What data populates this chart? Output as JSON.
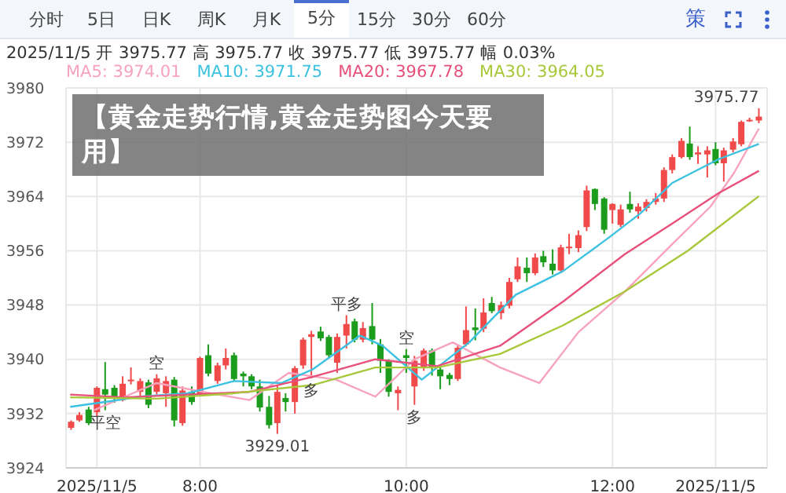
{
  "chart_data": {
    "type": "candlestick",
    "title": "【黄金走势行情,黄金走势图今天要用】",
    "subtitle": "2025/11/5 开 3975.77 高 3975.77 收 3975.77 低 3975.77 幅 0.03%",
    "annotations": [
      "分时",
      "5日",
      "日K",
      "周K",
      "月K",
      "5分",
      "15分",
      "30分",
      "60分",
      "策",
      {
        "text": "平空",
        "x": 7.08,
        "y": 3932.5
      },
      {
        "text": "空",
        "x": 7.58,
        "y": 3937.8
      },
      {
        "text": "多",
        "x": 9.08,
        "y": 3937.2
      },
      {
        "text": "平多",
        "x": 9.42,
        "y": 3946.5
      },
      {
        "text": "空",
        "x": 10,
        "y": 3941.5
      },
      {
        "text": "多",
        "x": 10.08,
        "y": 3933.3
      },
      {
        "text": "3929.01",
        "x": 8.75,
        "y": 3929.01
      },
      {
        "text": "3975.77",
        "x": 13.42,
        "y": 3977
      }
    ],
    "x": [
      6.75,
      6.83,
      6.92,
      7,
      7.08,
      7.17,
      7.25,
      7.33,
      7.42,
      7.5,
      7.58,
      7.67,
      7.75,
      7.83,
      7.92,
      8,
      8.08,
      8.17,
      8.25,
      8.33,
      8.42,
      8.5,
      8.58,
      8.67,
      8.75,
      8.83,
      8.92,
      9,
      9.08,
      9.17,
      9.25,
      9.33,
      9.42,
      9.5,
      9.58,
      9.67,
      9.75,
      9.83,
      9.92,
      10,
      10.08,
      10.17,
      10.25,
      10.33,
      10.42,
      10.5,
      10.58,
      10.67,
      10.75,
      10.83,
      10.92,
      11,
      11.08,
      11.17,
      11.25,
      11.33,
      11.42,
      11.5,
      11.58,
      11.67,
      11.75,
      11.83,
      11.92,
      12,
      12.08,
      12.17,
      12.25,
      12.33,
      12.42,
      12.5,
      12.58,
      12.67,
      12.75,
      12.83,
      12.92,
      13,
      13.08,
      13.17,
      13.25,
      13.33,
      13.42
    ],
    "ohlc": [
      [
        3929.9,
        3931.0,
        3929.6,
        3930.8
      ],
      [
        3931.0,
        3932.2,
        3930.8,
        3931.8
      ],
      [
        3932.6,
        3933.0,
        3930.3,
        3930.6
      ],
      [
        3932.2,
        3936.0,
        3931.5,
        3935.8
      ],
      [
        3935.6,
        3939.6,
        3932.5,
        3934.8
      ],
      [
        3935.8,
        3936.2,
        3933.6,
        3934.3
      ],
      [
        3934.0,
        3937.5,
        3933.8,
        3936.4
      ],
      [
        3936.8,
        3938.8,
        3936.3,
        3937.0
      ],
      [
        3935.2,
        3937.2,
        3934.6,
        3936.8
      ],
      [
        3936.6,
        3937.0,
        3932.8,
        3933.3
      ],
      [
        3935.2,
        3937.8,
        3934.8,
        3937.2
      ],
      [
        3935.0,
        3937.5,
        3933.0,
        3936.8
      ],
      [
        3937.0,
        3937.4,
        3930.1,
        3931.0
      ],
      [
        3930.6,
        3936.0,
        3930.2,
        3935.4
      ],
      [
        3935.2,
        3936.0,
        3933.3,
        3933.7
      ],
      [
        3934.9,
        3940.4,
        3934.6,
        3940.2
      ],
      [
        3940.6,
        3942.2,
        3937.5,
        3937.9
      ],
      [
        3936.8,
        3939.5,
        3936.4,
        3939.1
      ],
      [
        3939.1,
        3941.6,
        3938.5,
        3940.2
      ],
      [
        3940.6,
        3941.0,
        3936.8,
        3937.1
      ],
      [
        3937.9,
        3938.2,
        3936.0,
        3937.5
      ],
      [
        3937.5,
        3937.8,
        3935.6,
        3936.0
      ],
      [
        3936.0,
        3937.0,
        3932.3,
        3932.9
      ],
      [
        3933.0,
        3934.6,
        3929.8,
        3930.3
      ],
      [
        3930.6,
        3936.2,
        3929.01,
        3935.2
      ],
      [
        3934.3,
        3935.0,
        3932.3,
        3933.7
      ],
      [
        3933.7,
        3939.0,
        3932.0,
        3938.7
      ],
      [
        3939.1,
        3943.2,
        3938.6,
        3942.9
      ],
      [
        3943.3,
        3944.2,
        3937.2,
        3943.7
      ],
      [
        3944.1,
        3944.8,
        3942.7,
        3943.1
      ],
      [
        3943.3,
        3943.6,
        3940.2,
        3940.6
      ],
      [
        3939.5,
        3943.8,
        3938.0,
        3943.3
      ],
      [
        3943.5,
        3946.5,
        3941.6,
        3945.2
      ],
      [
        3945.6,
        3946.0,
        3942.5,
        3942.9
      ],
      [
        3942.9,
        3945.5,
        3942.5,
        3944.6
      ],
      [
        3944.9,
        3948.3,
        3942.2,
        3942.9
      ],
      [
        3942.2,
        3943.0,
        3938.0,
        3939.8
      ],
      [
        3939.8,
        3940.0,
        3934.5,
        3935.2
      ],
      [
        3935.0,
        3936.0,
        3932.5,
        3935.5
      ],
      [
        3940.6,
        3941.5,
        3938.0,
        3940.2
      ],
      [
        3936.0,
        3940.5,
        3933.3,
        3939.8
      ],
      [
        3938.7,
        3941.6,
        3938.3,
        3941.3
      ],
      [
        3941.3,
        3941.6,
        3937.6,
        3938.7
      ],
      [
        3938.5,
        3939.0,
        3935.6,
        3937.5
      ],
      [
        3937.7,
        3938.0,
        3936.2,
        3937.1
      ],
      [
        3937.1,
        3942.2,
        3936.8,
        3941.7
      ],
      [
        3942.2,
        3947.8,
        3941.9,
        3944.3
      ],
      [
        3944.7,
        3947.5,
        3942.8,
        3944.3
      ],
      [
        3944.5,
        3949.0,
        3944.0,
        3946.9
      ],
      [
        3948.3,
        3949.2,
        3946.8,
        3947.1
      ],
      [
        3946.8,
        3948.5,
        3945.9,
        3948.0
      ],
      [
        3947.9,
        3952.0,
        3947.5,
        3951.4
      ],
      [
        3951.8,
        3955.0,
        3951.4,
        3953.7
      ],
      [
        3953.5,
        3955.0,
        3951.4,
        3952.7
      ],
      [
        3952.7,
        3955.6,
        3952.4,
        3955.0
      ],
      [
        3955.2,
        3956.0,
        3953.6,
        3954.3
      ],
      [
        3954.1,
        3956.2,
        3952.5,
        3953.1
      ],
      [
        3953.1,
        3956.9,
        3952.7,
        3956.5
      ],
      [
        3956.5,
        3958.5,
        3955.5,
        3956.6
      ],
      [
        3956.4,
        3959.0,
        3955.8,
        3958.3
      ],
      [
        3959.5,
        3965.6,
        3958.9,
        3964.9
      ],
      [
        3965.1,
        3965.2,
        3962.0,
        3962.9
      ],
      [
        3963.7,
        3963.9,
        3958.5,
        3959.1
      ],
      [
        3962.0,
        3963.0,
        3960.0,
        3962.9
      ],
      [
        3959.8,
        3962.8,
        3959.5,
        3962.1
      ],
      [
        3962.9,
        3964.7,
        3961.6,
        3962.1
      ],
      [
        3961.8,
        3963.0,
        3960.7,
        3962.5
      ],
      [
        3962.3,
        3963.6,
        3961.8,
        3963.2
      ],
      [
        3963.2,
        3964.5,
        3962.8,
        3963.7
      ],
      [
        3963.7,
        3968.3,
        3963.2,
        3967.9
      ],
      [
        3967.9,
        3970.2,
        3967.4,
        3969.8
      ],
      [
        3969.8,
        3972.6,
        3969.6,
        3972.2
      ],
      [
        3971.8,
        3974.3,
        3969.4,
        3969.8
      ],
      [
        3970.2,
        3971.4,
        3968.8,
        3970.5
      ],
      [
        3970.2,
        3971.4,
        3966.8,
        3970.8
      ],
      [
        3971.0,
        3972.0,
        3968.6,
        3968.9
      ],
      [
        3968.9,
        3971.2,
        3966.2,
        3970.8
      ],
      [
        3970.9,
        3972.6,
        3970.5,
        3972.1
      ],
      [
        3971.7,
        3975.2,
        3971.4,
        3975.0
      ],
      [
        3975.2,
        3975.6,
        3975.0,
        3975.3
      ],
      [
        3975.2,
        3977.0,
        3974.8,
        3975.77
      ]
    ],
    "colors": [
      "#f04a4a",
      "#f04a4a",
      "#1c9c1c",
      "#f04a4a",
      "#1c9c1c",
      "#1c9c1c",
      "#f04a4a",
      "#f04a4a",
      "#f04a4a",
      "#1c9c1c",
      "#f04a4a",
      "#f04a4a",
      "#1c9c1c",
      "#f04a4a",
      "#1c9c1c",
      "#f04a4a",
      "#1c9c1c",
      "#f04a4a",
      "#f04a4a",
      "#1c9c1c",
      "#1c9c1c",
      "#1c9c1c",
      "#1c9c1c",
      "#1c9c1c",
      "#f04a4a",
      "#1c9c1c",
      "#f04a4a",
      "#f04a4a",
      "#f04a4a",
      "#1c9c1c",
      "#1c9c1c",
      "#f04a4a",
      "#f04a4a",
      "#1c9c1c",
      "#f04a4a",
      "#1c9c1c",
      "#1c9c1c",
      "#1c9c1c",
      "#f04a4a",
      "#1c9c1c",
      "#f04a4a",
      "#f04a4a",
      "#1c9c1c",
      "#1c9c1c",
      "#1c9c1c",
      "#f04a4a",
      "#f04a4a",
      "#1c9c1c",
      "#f04a4a",
      "#1c9c1c",
      "#f04a4a",
      "#f04a4a",
      "#f04a4a",
      "#1c9c1c",
      "#f04a4a",
      "#1c9c1c",
      "#1c9c1c",
      "#f04a4a",
      "#f04a4a",
      "#f04a4a",
      "#f04a4a",
      "#1c9c1c",
      "#1c9c1c",
      "#f04a4a",
      "#f04a4a",
      "#1c9c1c",
      "#f04a4a",
      "#f04a4a",
      "#f04a4a",
      "#f04a4a",
      "#f04a4a",
      "#f04a4a",
      "#1c9c1c",
      "#f04a4a",
      "#f04a4a",
      "#1c9c1c",
      "#f04a4a",
      "#f04a4a",
      "#f04a4a",
      "#f04a4a",
      "#f04a4a"
    ],
    "series": [
      {
        "name": "MA5: 3974.01",
        "type": "line",
        "color": "#f7a3bd",
        "x": [
          6.97,
          7.27,
          7.58,
          8.03,
          8.48,
          8.86,
          9.32,
          9.7,
          10.08,
          10.45,
          10.91,
          11.29,
          11.67,
          12.12,
          12.58,
          12.95,
          13.18,
          13.42
        ],
        "values": [
          3932.5,
          3934.5,
          3936.5,
          3935.2,
          3934,
          3938,
          3937,
          3934.5,
          3940,
          3942.5,
          3938.8,
          3936.5,
          3944,
          3950,
          3957,
          3962.5,
          3967.5,
          3974.01
        ]
      },
      {
        "name": "MA10: 3971.75",
        "type": "line",
        "color": "#3cc2e0",
        "x": [
          6.74,
          7.12,
          7.42,
          7.88,
          8.33,
          8.79,
          9.09,
          9.55,
          9.77,
          10.15,
          10.61,
          11.06,
          11.52,
          11.97,
          12.27,
          12.58,
          13.03,
          13.42
        ],
        "values": [
          3933,
          3933.8,
          3934.5,
          3935,
          3936.8,
          3936.5,
          3938.5,
          3943.5,
          3942,
          3937,
          3942.5,
          3949.5,
          3953,
          3958,
          3961.5,
          3966,
          3969.5,
          3971.75
        ]
      },
      {
        "name": "MA20: 3967.78",
        "type": "line",
        "color": "#e8507c",
        "x": [
          6.74,
          7.27,
          7.88,
          8.48,
          9.09,
          9.7,
          10.3,
          10.91,
          11.52,
          12.12,
          12.58,
          13.03,
          13.42
        ],
        "values": [
          3934.8,
          3934.4,
          3934.8,
          3935.2,
          3937.4,
          3940,
          3939,
          3942,
          3948.5,
          3955.5,
          3960,
          3964.5,
          3967.78
        ]
      },
      {
        "name": "MA30: 3964.05",
        "type": "line",
        "color": "#a8c83a",
        "x": [
          6.74,
          7.58,
          8.33,
          9.09,
          9.7,
          10.3,
          10.91,
          11.52,
          12.12,
          12.73,
          13.42
        ],
        "values": [
          3934.4,
          3934.2,
          3935,
          3936.2,
          3938.8,
          3938.8,
          3940.8,
          3945,
          3950,
          3956,
          3964.05
        ]
      }
    ],
    "xlim": [
      6.7,
      13.5
    ],
    "xticks": [
      {
        "value": 7,
        "label": "2025/11/5"
      },
      {
        "value": 8,
        "label": "8:00"
      },
      {
        "value": 10,
        "label": "10:00"
      },
      {
        "value": 12,
        "label": "12:00"
      },
      {
        "value": 13,
        "label": "2025/11/5"
      }
    ],
    "ylim": [
      3924,
      3980
    ],
    "yticks": [
      3924,
      3932,
      3940,
      3948,
      3956,
      3964,
      3972,
      3980
    ],
    "grid": true,
    "legend": "top left"
  }
}
